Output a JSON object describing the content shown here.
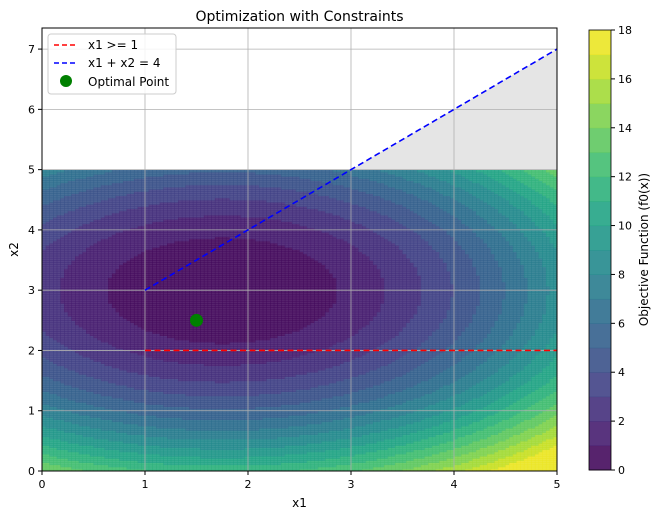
{
  "chart_data": {
    "type": "contour",
    "title": "Optimization with Constraints",
    "xlabel": "x1",
    "ylabel": "x2",
    "xlim": [
      0,
      5
    ],
    "ylim": [
      0,
      7.35
    ],
    "xticks": [
      "0",
      "1",
      "2",
      "3",
      "4",
      "5"
    ],
    "yticks": [
      "0",
      "1",
      "2",
      "3",
      "4",
      "5",
      "6",
      "7"
    ],
    "grid": true,
    "legend_position": "top-left",
    "contour": {
      "x_range": [
        0,
        5
      ],
      "y_range": [
        0,
        5
      ],
      "center": [
        1.75,
        3.0
      ],
      "a": 0.8,
      "b": 1.3,
      "levels": [
        0,
        1,
        2,
        3,
        4,
        5,
        6,
        7,
        8,
        9,
        10,
        11,
        12,
        13,
        14,
        15,
        16,
        17,
        18
      ],
      "colormap": "viridis"
    },
    "infeasible_region": {
      "vertices": [
        [
          3,
          5
        ],
        [
          5,
          7
        ],
        [
          5,
          5
        ]
      ],
      "color": "#e5e5e5"
    },
    "series": [
      {
        "name": "x1 >= 1",
        "type": "line",
        "style": "dashed",
        "color": "#ff0000",
        "x": [
          1,
          5
        ],
        "y": [
          2,
          2
        ]
      },
      {
        "name": "x1 + x2 = 4",
        "type": "line",
        "style": "dashed",
        "color": "#0000ff",
        "x": [
          1,
          5
        ],
        "y": [
          3,
          7
        ]
      },
      {
        "name": "Optimal Point",
        "type": "scatter",
        "color": "#008000",
        "x": [
          1.5
        ],
        "y": [
          2.5
        ]
      }
    ],
    "colorbar": {
      "label": "Objective Function (f0(x))",
      "min": 0,
      "max": 18,
      "ticks": [
        "0",
        "2",
        "4",
        "6",
        "8",
        "10",
        "12",
        "14",
        "16",
        "18"
      ]
    }
  }
}
